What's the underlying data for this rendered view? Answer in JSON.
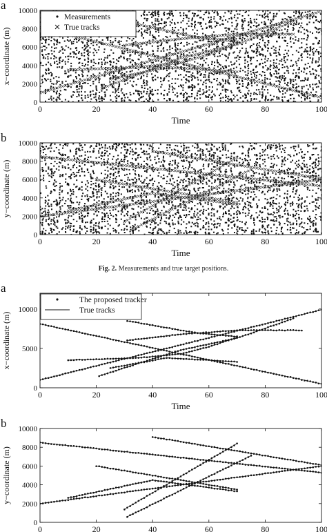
{
  "caption": {
    "prefix": "Fig. 2.",
    "text": "Measurements and true target positions."
  },
  "chart_data": [
    {
      "type": "scatter",
      "panel_label": "a",
      "xlabel": "Time",
      "ylabel": "x−coordinate (m)",
      "xlim": [
        0,
        100
      ],
      "ylim": [
        0,
        10000
      ],
      "xticks": [
        0,
        20,
        40,
        60,
        80,
        100
      ],
      "yticks": [
        0,
        2000,
        4000,
        6000,
        8000,
        10000
      ],
      "legend_position": "top-left",
      "clutter_density": "dense",
      "series": [
        {
          "name": "Measurements",
          "marker": "dot",
          "clutter": true
        },
        {
          "name": "True tracks",
          "marker": "cross",
          "tracks": [
            {
              "x": [
                0,
                100
              ],
              "y": [
                8100,
                500
              ]
            },
            {
              "x": [
                0,
                100
              ],
              "y": [
                1000,
                9900
              ]
            },
            {
              "x": [
                10,
                35,
                50,
                60,
                70
              ],
              "y": [
                3500,
                3800,
                4300,
                5200,
                6400
              ]
            },
            {
              "x": [
                30,
                55,
                70
              ],
              "y": [
                8800,
                7100,
                6600
              ]
            },
            {
              "x": [
                22,
                50,
                70,
                90
              ],
              "y": [
                1500,
                4800,
                6300,
                8800
              ]
            },
            {
              "x": [
                30,
                50,
                70,
                90
              ],
              "y": [
                6200,
                6900,
                7400,
                7400
              ]
            },
            {
              "x": [
                25,
                45,
                70
              ],
              "y": [
                2500,
                3800,
                3300
              ]
            }
          ]
        }
      ]
    },
    {
      "type": "scatter",
      "panel_label": "b",
      "xlabel": "Time",
      "ylabel": "y−coordinate (m)",
      "xlim": [
        0,
        100
      ],
      "ylim": [
        0,
        10000
      ],
      "xticks": [
        0,
        20,
        40,
        60,
        80,
        100
      ],
      "yticks": [
        0,
        2000,
        4000,
        6000,
        8000,
        10000
      ],
      "clutter_density": "dense",
      "series": [
        {
          "name": "Measurements",
          "marker": "dot",
          "clutter": true
        },
        {
          "name": "True tracks",
          "marker": "cross",
          "tracks": [
            {
              "x": [
                0,
                100
              ],
              "y": [
                8500,
                5300
              ]
            },
            {
              "x": [
                0,
                100
              ],
              "y": [
                2000,
                6000
              ]
            },
            {
              "x": [
                10,
                40,
                70
              ],
              "y": [
                2600,
                4500,
                3300
              ]
            },
            {
              "x": [
                20,
                50,
                70
              ],
              "y": [
                6000,
                4500,
                3500
              ]
            },
            {
              "x": [
                30,
                70
              ],
              "y": [
                1400,
                8400
              ]
            },
            {
              "x": [
                33,
                75
              ],
              "y": [
                600,
                7100
              ]
            },
            {
              "x": [
                40,
                100
              ],
              "y": [
                9100,
                6100
              ]
            }
          ]
        }
      ]
    },
    {
      "type": "line",
      "panel_label": "a",
      "xlabel": "Time",
      "ylabel": "x−coordinate (m)",
      "xlim": [
        0,
        100
      ],
      "ylim": [
        0,
        12000
      ],
      "xticks": [
        0,
        20,
        40,
        60,
        80,
        100
      ],
      "yticks": [
        0,
        5000,
        10000
      ],
      "legend_position": "top-left",
      "series": [
        {
          "name": "The proposed tracker",
          "marker": "dot"
        },
        {
          "name": "True tracks",
          "marker": "line"
        }
      ],
      "tracks": [
        {
          "x": [
            0,
            100
          ],
          "y": [
            8100,
            500
          ]
        },
        {
          "x": [
            0,
            100
          ],
          "y": [
            1000,
            9900
          ]
        },
        {
          "x": [
            10,
            35,
            50,
            60,
            70
          ],
          "y": [
            3500,
            3800,
            4300,
            5200,
            6400
          ]
        },
        {
          "x": [
            31,
            55,
            70
          ],
          "y": [
            8500,
            7000,
            6500
          ]
        },
        {
          "x": [
            21,
            50,
            70,
            90
          ],
          "y": [
            1500,
            4800,
            6300,
            8800
          ]
        },
        {
          "x": [
            31,
            50,
            70,
            93
          ],
          "y": [
            6000,
            6800,
            7300,
            7300
          ]
        },
        {
          "x": [
            25,
            45,
            70
          ],
          "y": [
            2500,
            3800,
            3300
          ]
        }
      ]
    },
    {
      "type": "line",
      "panel_label": "b",
      "xlabel": "Time",
      "ylabel": "y−coordinate (m)",
      "xlim": [
        0,
        100
      ],
      "ylim": [
        0,
        10000
      ],
      "xticks": [
        0,
        20,
        40,
        60,
        80,
        100
      ],
      "yticks": [
        0,
        2000,
        4000,
        6000,
        8000,
        10000
      ],
      "series": [
        {
          "name": "The proposed tracker",
          "marker": "dot"
        },
        {
          "name": "True tracks",
          "marker": "line"
        }
      ],
      "tracks": [
        {
          "x": [
            0,
            100
          ],
          "y": [
            8500,
            5300
          ]
        },
        {
          "x": [
            0,
            100
          ],
          "y": [
            2000,
            6000
          ]
        },
        {
          "x": [
            10,
            40,
            70
          ],
          "y": [
            2600,
            4500,
            3300
          ]
        },
        {
          "x": [
            20,
            50,
            70
          ],
          "y": [
            6000,
            4500,
            3500
          ]
        },
        {
          "x": [
            30,
            70
          ],
          "y": [
            1400,
            8400
          ]
        },
        {
          "x": [
            31,
            75
          ],
          "y": [
            600,
            7100
          ]
        },
        {
          "x": [
            40,
            100
          ],
          "y": [
            9100,
            6100
          ]
        }
      ]
    }
  ]
}
